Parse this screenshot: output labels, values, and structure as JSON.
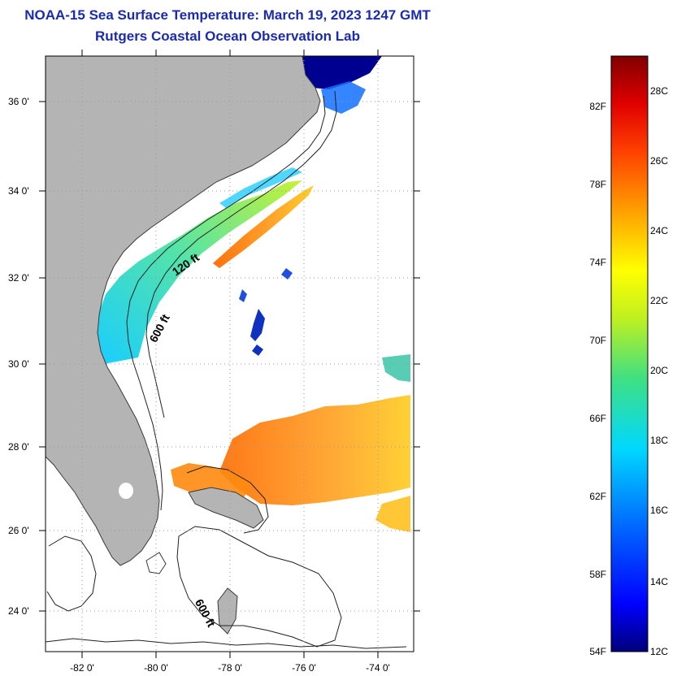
{
  "title_line1": "NOAA-15 Sea Surface Temperature:  March 19, 2023 1247 GMT",
  "title_line2": "Rutgers Coastal Ocean Observation Lab",
  "lat_ticks": [
    "36 0'",
    "34 0'",
    "32 0'",
    "30 0'",
    "28 0'",
    "26 0'",
    "24 0'"
  ],
  "lon_ticks": [
    "-82 0'",
    "-80 0'",
    "-78 0'",
    "-76 0'",
    "-74 0'"
  ],
  "contour_labels": [
    "120 ft",
    "600 ft",
    "600 ft"
  ],
  "colorbar": {
    "f_labels": [
      "82F",
      "78F",
      "74F",
      "70F",
      "66F",
      "62F",
      "58F",
      "54F"
    ],
    "c_labels": [
      "28C",
      "26C",
      "24C",
      "22C",
      "20C",
      "18C",
      "16C",
      "14C",
      "12C"
    ]
  },
  "colors": {
    "land": "#b4b4b4",
    "ocean": "#ffffff",
    "title": "#1b2bb0"
  }
}
